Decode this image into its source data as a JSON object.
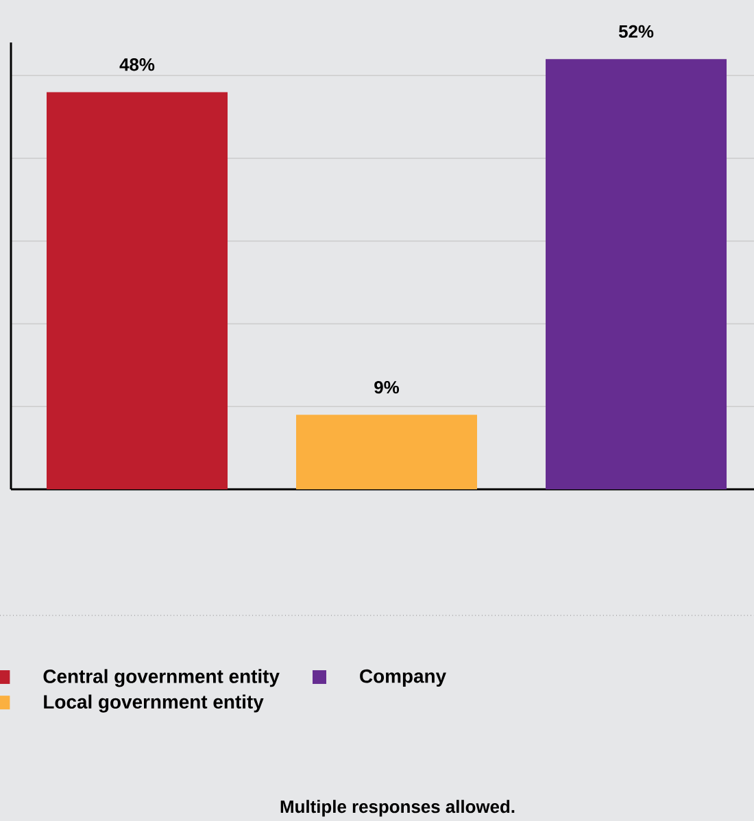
{
  "chart_data": {
    "type": "bar",
    "categories": [
      null
    ],
    "series": [
      {
        "name": "Central government entity",
        "color": "#be1e2d",
        "values": [
          48
        ],
        "value_labels": [
          "48%"
        ]
      },
      {
        "name": "Local government entity",
        "color": "#fbb040",
        "values": [
          9
        ],
        "value_labels": [
          "9%"
        ]
      },
      {
        "name": "Company",
        "color": "#662d91",
        "values": [
          52
        ],
        "value_labels": [
          "52%"
        ]
      }
    ],
    "ylim": [
      0,
      54
    ],
    "yticks": [
      {
        "value": 10,
        "label": null
      },
      {
        "value": 20,
        "label": null
      },
      {
        "value": 30,
        "label": null
      },
      {
        "value": 40,
        "label": null
      },
      {
        "value": 50,
        "label": null
      }
    ],
    "grid": "y",
    "legend": "bottom",
    "annotations": [
      "Multiple responses allowed."
    ]
  }
}
